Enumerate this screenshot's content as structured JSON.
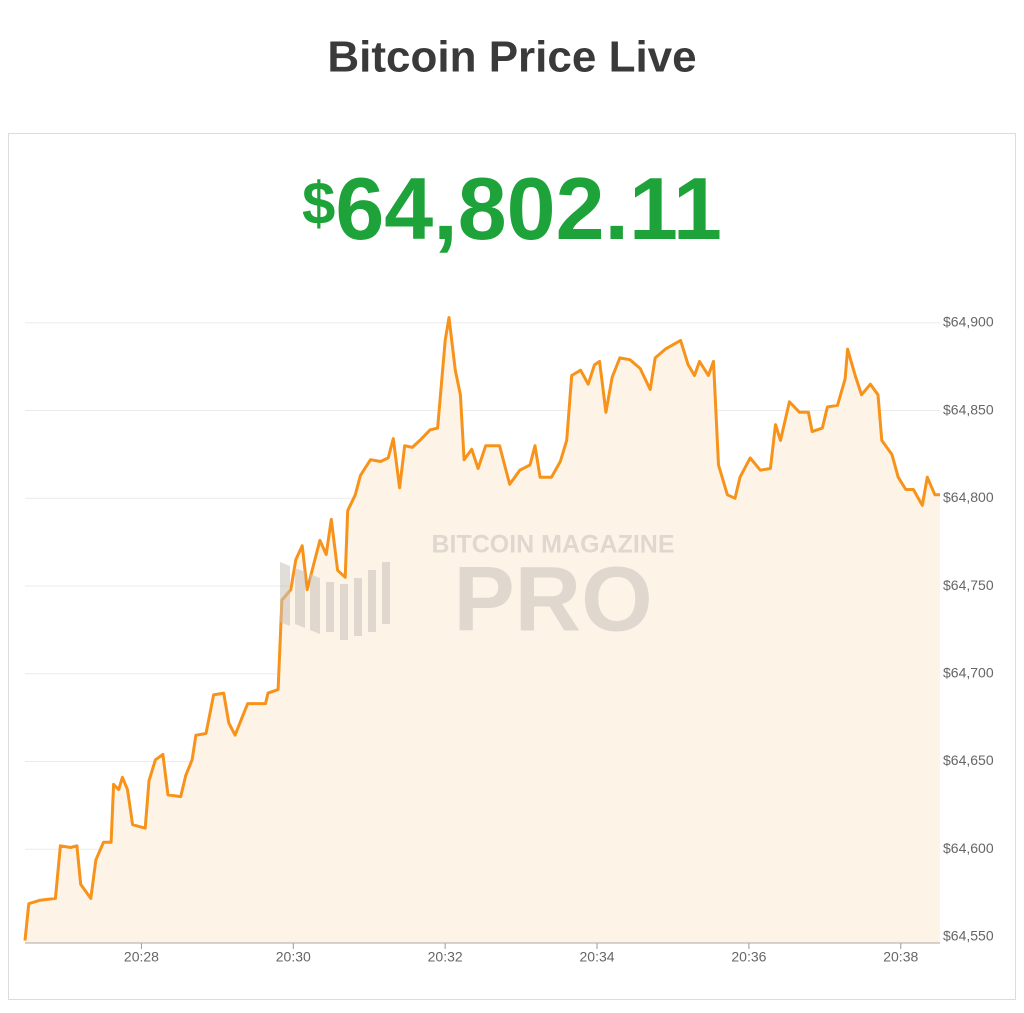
{
  "chart_data": {
    "type": "area-line",
    "title": "Bitcoin Price Live",
    "price_symbol": "$",
    "price_value": "64,802.11",
    "watermark": {
      "top": "BITCOIN MAGAZINE",
      "main": "PRO"
    },
    "color": "#f7931a",
    "fill_color": "#fdf3e6",
    "grid": true,
    "x": [
      "20:26:28",
      "20:26:31",
      "20:26:40",
      "20:26:52",
      "20:26:56",
      "20:27:04",
      "20:27:09",
      "20:27:12",
      "20:27:20",
      "20:27:24",
      "20:27:30",
      "20:27:36",
      "20:27:38",
      "20:27:42",
      "20:27:45",
      "20:27:49",
      "20:27:53",
      "20:28:03",
      "20:28:06",
      "20:28:11",
      "20:28:17",
      "20:28:21",
      "20:28:31",
      "20:28:35",
      "20:28:40",
      "20:28:43",
      "20:28:51",
      "20:28:57",
      "20:29:05",
      "20:29:09",
      "20:29:14",
      "20:29:20",
      "20:29:24",
      "20:29:38",
      "20:29:40",
      "20:29:48",
      "20:29:51",
      "20:29:58",
      "20:30:02",
      "20:30:07",
      "20:30:11",
      "20:30:16",
      "20:30:21",
      "20:30:26",
      "20:30:30",
      "20:30:35",
      "20:30:41",
      "20:30:43",
      "20:30:49",
      "20:30:53",
      "20:31:01",
      "20:31:09",
      "20:31:15",
      "20:31:19",
      "20:31:24",
      "20:31:28",
      "20:31:34",
      "20:31:40",
      "20:31:48",
      "20:31:54",
      "20:32:00",
      "20:32:03",
      "20:32:08",
      "20:32:12",
      "20:32:15",
      "20:32:21",
      "20:32:26",
      "20:32:32",
      "20:32:43",
      "20:32:47",
      "20:32:51",
      "20:32:59",
      "20:33:07",
      "20:33:11",
      "20:33:15",
      "20:33:24",
      "20:33:31",
      "20:33:36",
      "20:33:40",
      "20:33:47",
      "20:33:53",
      "20:33:58",
      "20:34:02",
      "20:34:07",
      "20:34:12",
      "20:34:18",
      "20:34:26",
      "20:34:34",
      "20:34:42",
      "20:34:46",
      "20:34:54",
      "20:35:06",
      "20:35:12",
      "20:35:17",
      "20:35:21",
      "20:35:28",
      "20:35:32",
      "20:35:36",
      "20:35:43",
      "20:35:49",
      "20:35:53",
      "20:36:01",
      "20:36:09",
      "20:36:17",
      "20:36:21",
      "20:36:25",
      "20:36:32",
      "20:36:40",
      "20:36:47",
      "20:36:50",
      "20:36:58",
      "20:37:02",
      "20:37:10",
      "20:37:16",
      "20:37:18",
      "20:37:24",
      "20:37:29",
      "20:37:36",
      "20:37:42",
      "20:37:45",
      "20:37:53",
      "20:37:58",
      "20:38:04",
      "20:38:10",
      "20:38:17",
      "20:38:21",
      "20:38:27",
      "20:38:31"
    ],
    "values": [
      64548,
      64569,
      64571,
      64572,
      64602,
      64601,
      64602,
      64580,
      64572,
      64594,
      64604,
      64604,
      64637,
      64634,
      64641,
      64634,
      64614,
      64612,
      64639,
      64651,
      64654,
      64631,
      64630,
      64642,
      64651,
      64665,
      64666,
      64688,
      64689,
      64672,
      64665,
      64676,
      64683,
      64683,
      64689,
      64691,
      64742,
      64748,
      64765,
      64773,
      64748,
      64762,
      64776,
      64768,
      64788,
      64759,
      64755,
      64793,
      64802,
      64813,
      64822,
      64821,
      64823,
      64834,
      64806,
      64830,
      64829,
      64833,
      64839,
      64840,
      64890,
      64903,
      64873,
      64859,
      64822,
      64828,
      64817,
      64830,
      64830,
      64819,
      64808,
      64816,
      64819,
      64830,
      64812,
      64812,
      64821,
      64833,
      64870,
      64873,
      64865,
      64876,
      64878,
      64849,
      64869,
      64880,
      64879,
      64874,
      64862,
      64880,
      64885,
      64890,
      64876,
      64870,
      64878,
      64870,
      64878,
      64819,
      64802,
      64800,
      64812,
      64823,
      64816,
      64817,
      64842,
      64833,
      64855,
      64849,
      64849,
      64838,
      64840,
      64852,
      64853,
      64868,
      64885,
      64870,
      64859,
      64865,
      64859,
      64833,
      64825,
      64812,
      64805,
      64805,
      64796,
      64812,
      64802,
      64802
    ],
    "xlim": [
      "20:26:28",
      "20:38:31"
    ],
    "xticks": [
      "20:28",
      "20:30",
      "20:32",
      "20:34",
      "20:36",
      "20:38"
    ],
    "ylim": [
      64546.6,
      64913
    ],
    "yticks": [
      {
        "value": 64550,
        "label": "$64,550"
      },
      {
        "value": 64600,
        "label": "$64,600"
      },
      {
        "value": 64650,
        "label": "$64,650"
      },
      {
        "value": 64700,
        "label": "$64,700"
      },
      {
        "value": 64750,
        "label": "$64,750"
      },
      {
        "value": 64800,
        "label": "$64,800"
      },
      {
        "value": 64850,
        "label": "$64,850"
      },
      {
        "value": 64900,
        "label": "$64,900"
      }
    ]
  }
}
